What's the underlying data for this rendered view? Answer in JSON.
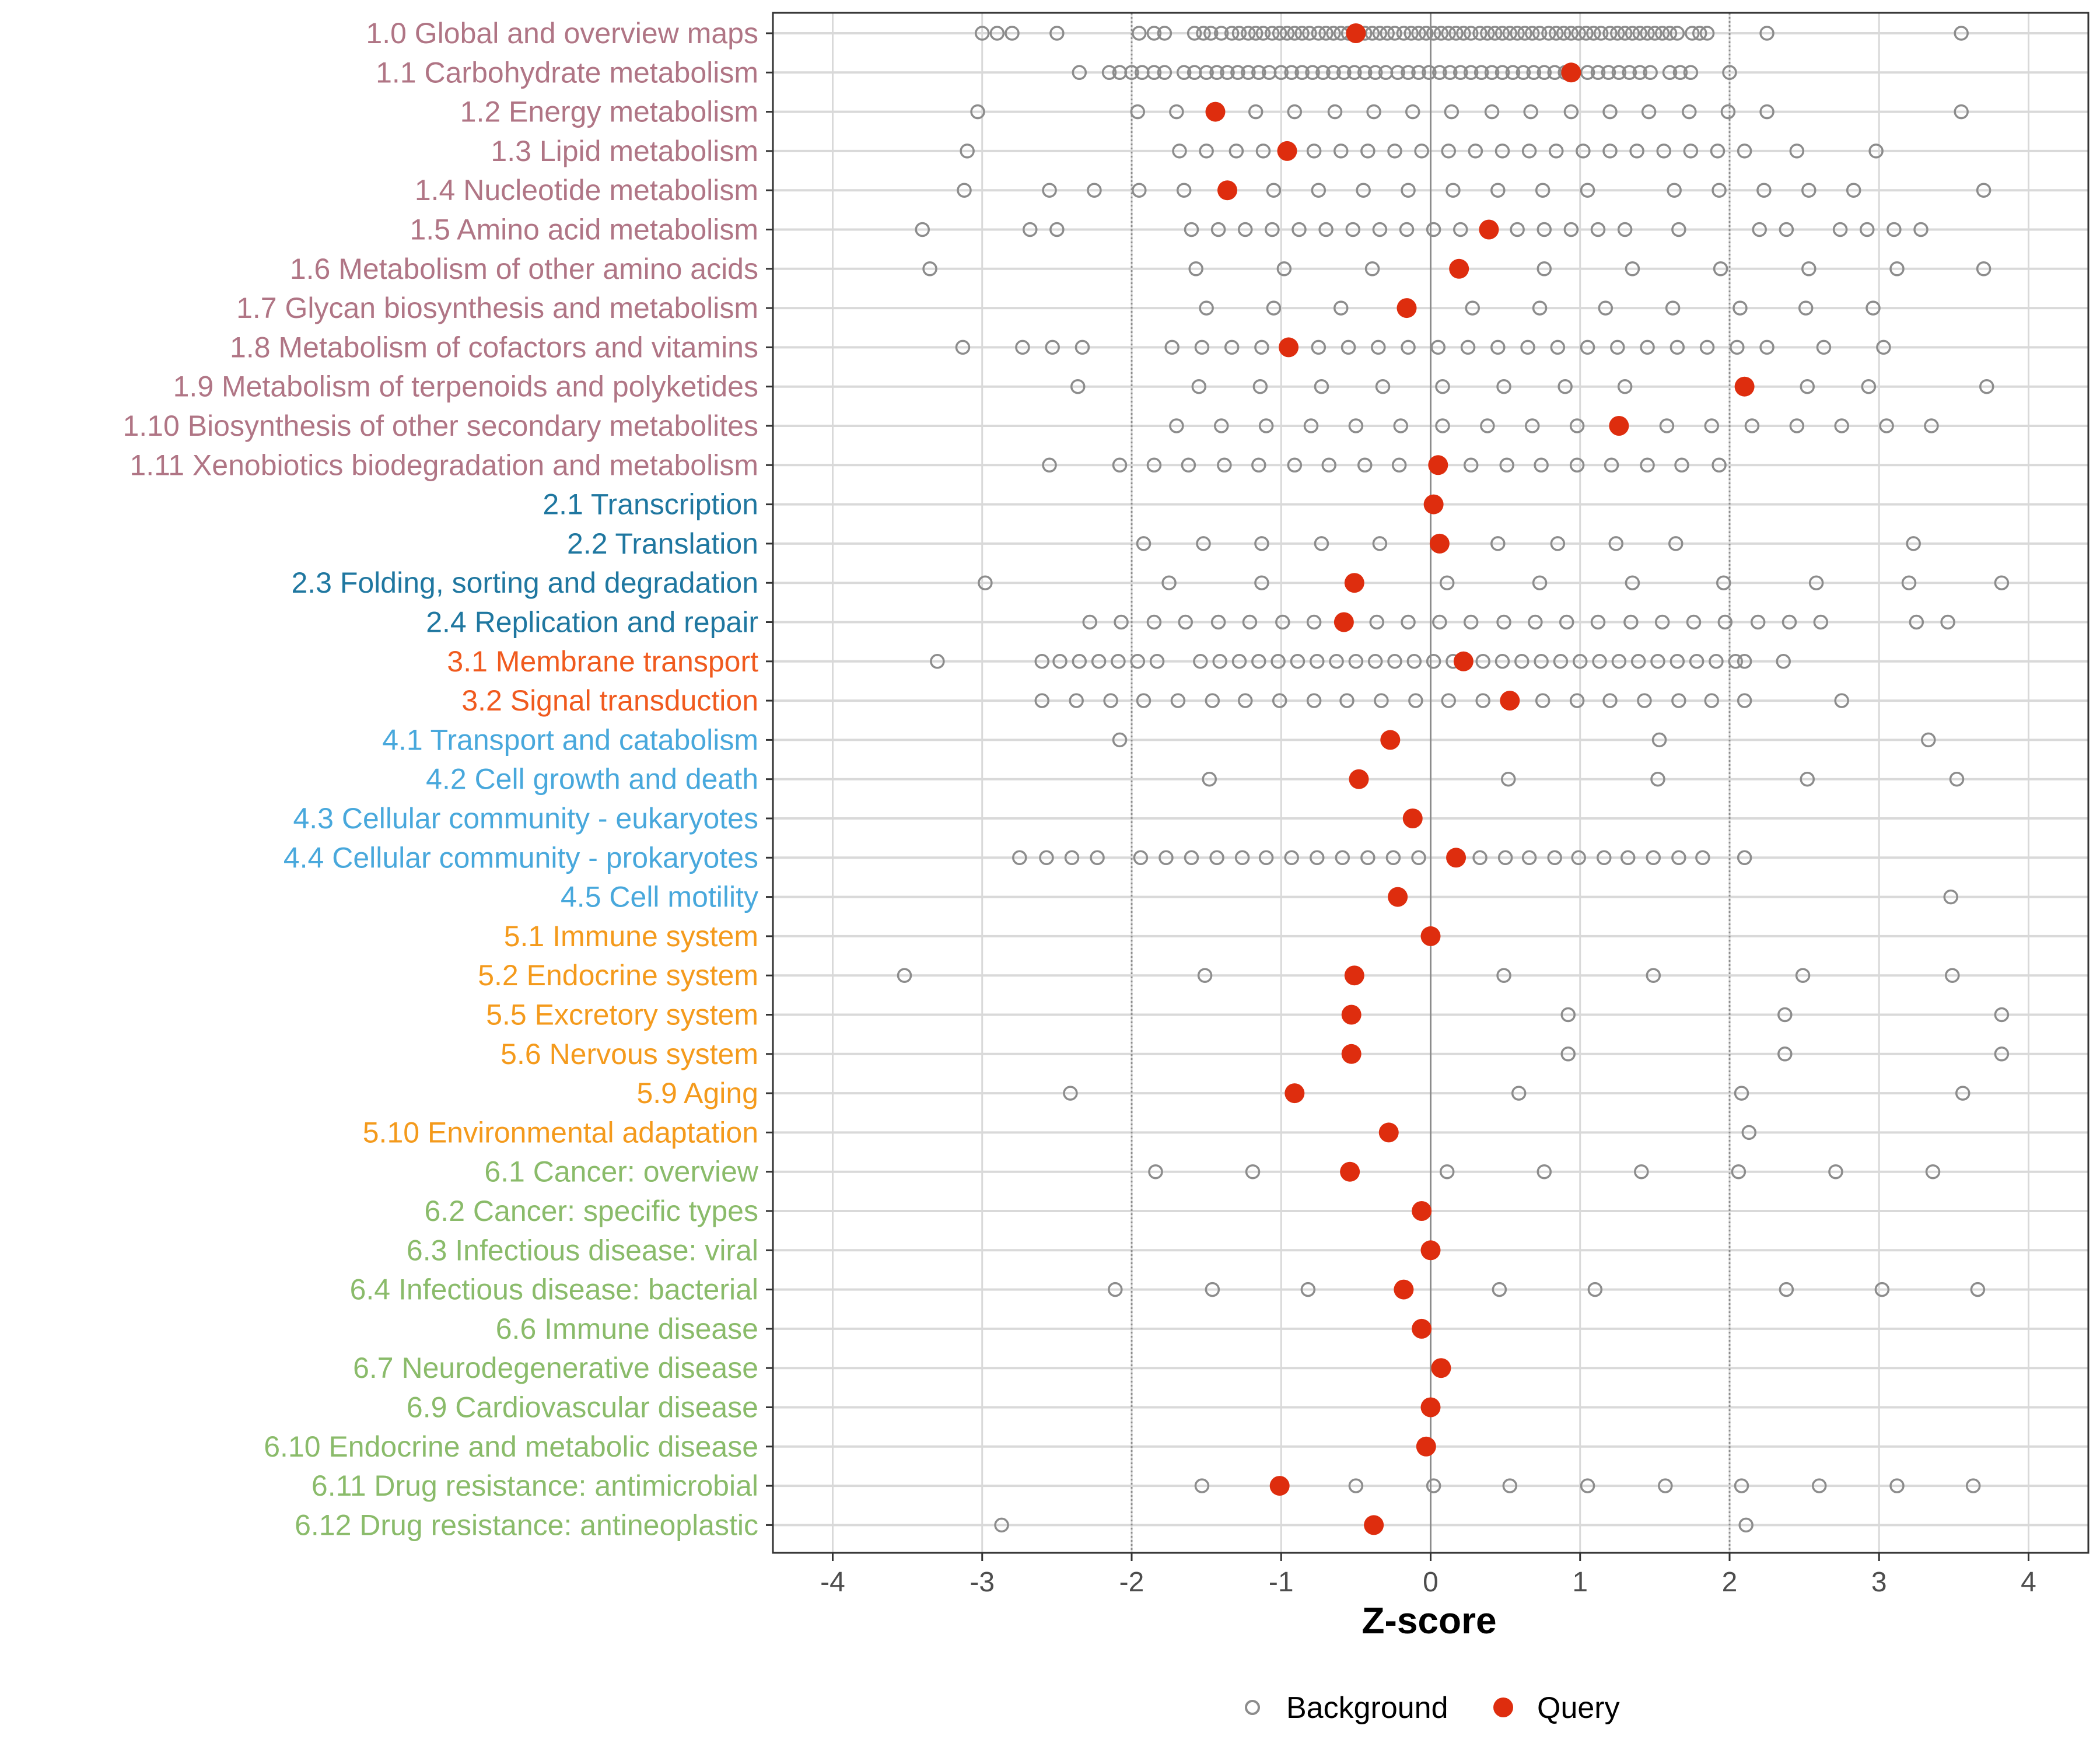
{
  "chart_data": {
    "type": "scatter",
    "xlabel": "Z-score",
    "xlim": [
      -4.4,
      4.4
    ],
    "x_ticks": [
      -4,
      -3,
      -2,
      -1,
      0,
      1,
      2,
      3,
      4
    ],
    "x_tick_labels": [
      "-4",
      "-3",
      "-2",
      "-1",
      "0",
      "1",
      "2",
      "3",
      "4"
    ],
    "reference_lines": [
      -2,
      2
    ],
    "legend": {
      "position": "bottom",
      "entries": [
        {
          "name": "Background",
          "marker": "open-circle",
          "color": "#8c8c8c"
        },
        {
          "name": "Query",
          "marker": "filled-circle",
          "color": "#de2d0e"
        }
      ]
    },
    "group_colors": {
      "1": "#b07585",
      "2": "#1f77a0",
      "3": "#f05a1e",
      "4": "#48a8dc",
      "5": "#f49a1c",
      "6": "#8abb6a"
    },
    "categories": [
      {
        "label": "1.0 Global and overview maps",
        "group": "1",
        "query": -0.5,
        "background": [
          -3.0,
          -2.9,
          -2.8,
          -2.5,
          -1.95,
          -1.85,
          -1.78,
          -1.58,
          -1.52,
          -1.47,
          -1.4,
          -1.33,
          -1.28,
          -1.22,
          -1.17,
          -1.12,
          -1.06,
          -1.01,
          -0.96,
          -0.91,
          -0.86,
          -0.81,
          -0.75,
          -0.7,
          -0.65,
          -0.6,
          -0.55,
          -0.49,
          -0.44,
          -0.39,
          -0.34,
          -0.29,
          -0.24,
          -0.18,
          -0.13,
          -0.08,
          -0.03,
          0.02,
          0.07,
          0.12,
          0.17,
          0.22,
          0.27,
          0.33,
          0.38,
          0.43,
          0.48,
          0.53,
          0.58,
          0.63,
          0.68,
          0.73,
          0.79,
          0.84,
          0.89,
          0.94,
          0.99,
          1.04,
          1.09,
          1.14,
          1.2,
          1.25,
          1.3,
          1.35,
          1.4,
          1.45,
          1.5,
          1.55,
          1.6,
          1.65,
          1.75,
          1.8,
          1.85,
          2.25,
          3.55
        ]
      },
      {
        "label": "1.1 Carbohydrate metabolism",
        "group": "1",
        "query": 0.94,
        "background": [
          -2.35,
          -2.15,
          -2.08,
          -2.0,
          -1.93,
          -1.85,
          -1.78,
          -1.65,
          -1.58,
          -1.5,
          -1.43,
          -1.36,
          -1.29,
          -1.22,
          -1.15,
          -1.08,
          -1.0,
          -0.93,
          -0.86,
          -0.79,
          -0.72,
          -0.65,
          -0.58,
          -0.51,
          -0.44,
          -0.37,
          -0.3,
          -0.22,
          -0.15,
          -0.08,
          -0.01,
          0.06,
          0.13,
          0.2,
          0.27,
          0.34,
          0.41,
          0.48,
          0.55,
          0.62,
          0.69,
          0.76,
          0.83,
          0.9,
          1.05,
          1.12,
          1.19,
          1.26,
          1.33,
          1.4,
          1.47,
          1.6,
          1.67,
          1.74,
          2.0
        ]
      },
      {
        "label": "1.2 Energy metabolism",
        "group": "1",
        "query": -1.44,
        "background": [
          -3.03,
          -1.96,
          -1.7,
          -1.17,
          -0.91,
          -0.64,
          -0.38,
          -0.12,
          0.14,
          0.41,
          0.67,
          0.94,
          1.2,
          1.46,
          1.73,
          1.99,
          2.25,
          3.55
        ]
      },
      {
        "label": "1.3 Lipid metabolism",
        "group": "1",
        "query": -0.96,
        "background": [
          -3.1,
          -1.68,
          -1.5,
          -1.3,
          -1.12,
          -0.78,
          -0.6,
          -0.42,
          -0.24,
          -0.06,
          0.12,
          0.3,
          0.48,
          0.66,
          0.84,
          1.02,
          1.2,
          1.38,
          1.56,
          1.74,
          1.92,
          2.1,
          2.45,
          2.98
        ]
      },
      {
        "label": "1.4 Nucleotide metabolism",
        "group": "1",
        "query": -1.36,
        "background": [
          -3.12,
          -2.55,
          -2.25,
          -1.95,
          -1.65,
          -1.05,
          -0.75,
          -0.45,
          -0.15,
          0.15,
          0.45,
          0.75,
          1.05,
          1.63,
          1.93,
          2.23,
          2.53,
          2.83,
          3.7
        ]
      },
      {
        "label": "1.5 Amino acid metabolism",
        "group": "1",
        "query": 0.39,
        "background": [
          -3.4,
          -2.68,
          -2.5,
          -1.6,
          -1.42,
          -1.24,
          -1.06,
          -0.88,
          -0.7,
          -0.52,
          -0.34,
          -0.16,
          0.02,
          0.2,
          0.58,
          0.76,
          0.94,
          1.12,
          1.3,
          1.66,
          2.2,
          2.38,
          2.74,
          2.92,
          3.1,
          3.28
        ]
      },
      {
        "label": "1.6 Metabolism of other amino acids",
        "group": "1",
        "query": 0.19,
        "background": [
          -3.35,
          -1.57,
          -0.98,
          -0.39,
          0.76,
          1.35,
          1.94,
          2.53,
          3.12,
          3.7
        ]
      },
      {
        "label": "1.7 Glycan biosynthesis and metabolism",
        "group": "1",
        "query": -0.16,
        "background": [
          -1.5,
          -1.05,
          -0.6,
          0.28,
          0.73,
          1.17,
          1.62,
          2.07,
          2.51,
          2.96
        ]
      },
      {
        "label": "1.8 Metabolism of cofactors and vitamins",
        "group": "1",
        "query": -0.95,
        "background": [
          -3.13,
          -2.73,
          -2.53,
          -2.33,
          -1.73,
          -1.53,
          -1.33,
          -1.13,
          -0.75,
          -0.55,
          -0.35,
          -0.15,
          0.05,
          0.25,
          0.45,
          0.65,
          0.85,
          1.05,
          1.25,
          1.45,
          1.65,
          1.85,
          2.05,
          2.25,
          2.63,
          3.03
        ]
      },
      {
        "label": "1.9 Metabolism of terpenoids and polyketides",
        "group": "1",
        "query": 2.1,
        "background": [
          -2.36,
          -1.55,
          -1.14,
          -0.73,
          -0.32,
          0.08,
          0.49,
          0.9,
          1.3,
          2.52,
          2.93,
          3.72
        ]
      },
      {
        "label": "1.10 Biosynthesis of other secondary metabolites",
        "group": "1",
        "query": 1.26,
        "background": [
          -1.7,
          -1.4,
          -1.1,
          -0.8,
          -0.5,
          -0.2,
          0.08,
          0.38,
          0.68,
          0.98,
          1.58,
          1.88,
          2.15,
          2.45,
          2.75,
          3.05,
          3.35
        ]
      },
      {
        "label": "1.11 Xenobiotics biodegradation and metabolism",
        "group": "1",
        "query": 0.05,
        "background": [
          -2.55,
          -2.08,
          -1.85,
          -1.62,
          -1.38,
          -1.15,
          -0.91,
          -0.68,
          -0.44,
          -0.21,
          0.27,
          0.51,
          0.74,
          0.98,
          1.21,
          1.45,
          1.68,
          1.93
        ]
      },
      {
        "label": "2.1 Transcription",
        "group": "2",
        "query": 0.02,
        "background": []
      },
      {
        "label": "2.2 Translation",
        "group": "2",
        "query": 0.06,
        "background": [
          -1.92,
          -1.52,
          -1.13,
          -0.73,
          -0.34,
          0.45,
          0.85,
          1.24,
          1.64,
          3.23
        ]
      },
      {
        "label": "2.3 Folding, sorting and degradation",
        "group": "2",
        "query": -0.51,
        "background": [
          -2.98,
          -1.75,
          -1.13,
          0.11,
          0.73,
          1.35,
          1.96,
          2.58,
          3.2,
          3.82
        ]
      },
      {
        "label": "2.4 Replication and repair",
        "group": "2",
        "query": -0.58,
        "background": [
          -2.28,
          -2.07,
          -1.85,
          -1.64,
          -1.42,
          -1.21,
          -0.99,
          -0.78,
          -0.36,
          -0.15,
          0.06,
          0.27,
          0.49,
          0.7,
          0.91,
          1.12,
          1.34,
          1.55,
          1.76,
          1.97,
          2.19,
          2.4,
          2.61,
          3.25,
          3.46
        ]
      },
      {
        "label": "3.1 Membrane transport",
        "group": "3",
        "query": 0.22,
        "background": [
          -3.3,
          -2.6,
          -2.48,
          -2.35,
          -2.22,
          -2.09,
          -1.96,
          -1.83,
          -1.54,
          -1.41,
          -1.28,
          -1.15,
          -1.02,
          -0.89,
          -0.76,
          -0.63,
          -0.5,
          -0.37,
          -0.24,
          -0.11,
          0.02,
          0.15,
          0.35,
          0.48,
          0.61,
          0.74,
          0.87,
          1.0,
          1.13,
          1.26,
          1.39,
          1.52,
          1.65,
          1.78,
          1.91,
          2.04,
          2.1,
          2.36
        ]
      },
      {
        "label": "3.2 Signal transduction",
        "group": "3",
        "query": 0.53,
        "background": [
          -2.6,
          -2.37,
          -2.14,
          -1.92,
          -1.69,
          -1.46,
          -1.24,
          -1.01,
          -0.78,
          -0.56,
          -0.33,
          -0.1,
          0.12,
          0.35,
          0.75,
          0.98,
          1.2,
          1.43,
          1.66,
          1.88,
          2.1,
          2.75
        ]
      },
      {
        "label": "4.1 Transport and catabolism",
        "group": "4",
        "query": -0.27,
        "background": [
          -2.08,
          1.53,
          3.33
        ]
      },
      {
        "label": "4.2 Cell growth and death",
        "group": "4",
        "query": -0.48,
        "background": [
          -1.48,
          0.52,
          1.52,
          2.52,
          3.52
        ]
      },
      {
        "label": "4.3 Cellular community - eukaryotes",
        "group": "4",
        "query": -0.12,
        "background": []
      },
      {
        "label": "4.4 Cellular community - prokaryotes",
        "group": "4",
        "query": 0.17,
        "background": [
          -2.75,
          -2.57,
          -2.4,
          -2.23,
          -1.94,
          -1.77,
          -1.6,
          -1.43,
          -1.26,
          -1.1,
          -0.93,
          -0.76,
          -0.59,
          -0.42,
          -0.25,
          -0.08,
          0.33,
          0.5,
          0.66,
          0.83,
          0.99,
          1.16,
          1.32,
          1.49,
          1.66,
          1.82,
          2.1
        ]
      },
      {
        "label": "4.5 Cell motility",
        "group": "4",
        "query": -0.22,
        "background": [
          3.48
        ]
      },
      {
        "label": "5.1 Immune system",
        "group": "5",
        "query": 0.0,
        "background": []
      },
      {
        "label": "5.2 Endocrine system",
        "group": "5",
        "query": -0.51,
        "background": [
          -3.52,
          -1.51,
          0.49,
          1.49,
          2.49,
          3.49
        ]
      },
      {
        "label": "5.5 Excretory system",
        "group": "5",
        "query": -0.53,
        "background": [
          0.92,
          2.37,
          3.82
        ]
      },
      {
        "label": "5.6 Nervous system",
        "group": "5",
        "query": -0.53,
        "background": [
          0.92,
          2.37,
          3.82
        ]
      },
      {
        "label": "5.9 Aging",
        "group": "5",
        "query": -0.91,
        "background": [
          -2.41,
          0.59,
          2.08,
          3.56
        ]
      },
      {
        "label": "5.10 Environmental adaptation",
        "group": "5",
        "query": -0.28,
        "background": [
          2.13
        ]
      },
      {
        "label": "6.1 Cancer: overview",
        "group": "6",
        "query": -0.54,
        "background": [
          -1.84,
          -1.19,
          0.11,
          0.76,
          1.41,
          2.06,
          2.71,
          3.36
        ]
      },
      {
        "label": "6.2 Cancer: specific types",
        "group": "6",
        "query": -0.06,
        "background": []
      },
      {
        "label": "6.3 Infectious disease: viral",
        "group": "6",
        "query": 0.0,
        "background": []
      },
      {
        "label": "6.4 Infectious disease: bacterial",
        "group": "6",
        "query": -0.18,
        "background": [
          -2.11,
          -1.46,
          -0.82,
          0.46,
          1.1,
          2.38,
          3.02,
          3.66
        ]
      },
      {
        "label": "6.6 Immune disease",
        "group": "6",
        "query": -0.06,
        "background": []
      },
      {
        "label": "6.7 Neurodegenerative disease",
        "group": "6",
        "query": 0.07,
        "background": []
      },
      {
        "label": "6.9 Cardiovascular disease",
        "group": "6",
        "query": 0.0,
        "background": []
      },
      {
        "label": "6.10 Endocrine and metabolic disease",
        "group": "6",
        "query": -0.03,
        "background": []
      },
      {
        "label": "6.11 Drug resistance: antimicrobial",
        "group": "6",
        "query": -1.01,
        "background": [
          -1.53,
          -0.5,
          0.02,
          0.53,
          1.05,
          1.57,
          2.08,
          2.6,
          3.12,
          3.63
        ]
      },
      {
        "label": "6.12 Drug resistance: antineoplastic",
        "group": "6",
        "query": -0.38,
        "background": [
          -2.87,
          2.11
        ]
      }
    ]
  }
}
